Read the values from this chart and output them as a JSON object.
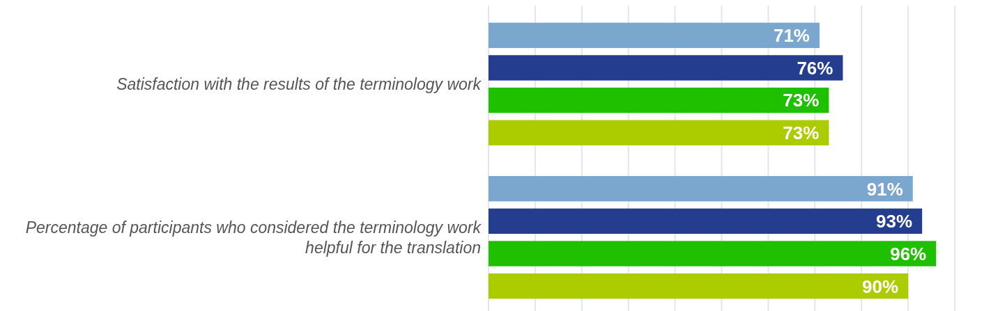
{
  "chart_data": {
    "type": "bar",
    "orientation": "horizontal",
    "categories": [
      "Satisfaction with the results of the terminology work",
      "Percentage of participants who considered the terminology work helpful for the translation"
    ],
    "series": [
      {
        "color": "#7ba7cf",
        "values": [
          71,
          91
        ],
        "value_labels": [
          "71%",
          "91%"
        ]
      },
      {
        "color": "#253d8f",
        "values": [
          76,
          93
        ],
        "value_labels": [
          "76%",
          "93%"
        ]
      },
      {
        "color": "#1ec000",
        "values": [
          73,
          96
        ],
        "value_labels": [
          "73%",
          "96%"
        ]
      },
      {
        "color": "#adcc00",
        "values": [
          73,
          90
        ],
        "value_labels": [
          "73%",
          "90%"
        ]
      }
    ],
    "xlim": [
      0,
      100
    ],
    "xticks": [
      {
        "value": 0,
        "label": null
      },
      {
        "value": 10,
        "label": null
      },
      {
        "value": 20,
        "label": null
      },
      {
        "value": 30,
        "label": null
      },
      {
        "value": 40,
        "label": null
      },
      {
        "value": 50,
        "label": null
      },
      {
        "value": 60,
        "label": null
      },
      {
        "value": 70,
        "label": null
      },
      {
        "value": 80,
        "label": null
      },
      {
        "value": 90,
        "label": null
      },
      {
        "value": 100,
        "label": null
      }
    ],
    "grid": "x",
    "tick_labels": "y"
  }
}
